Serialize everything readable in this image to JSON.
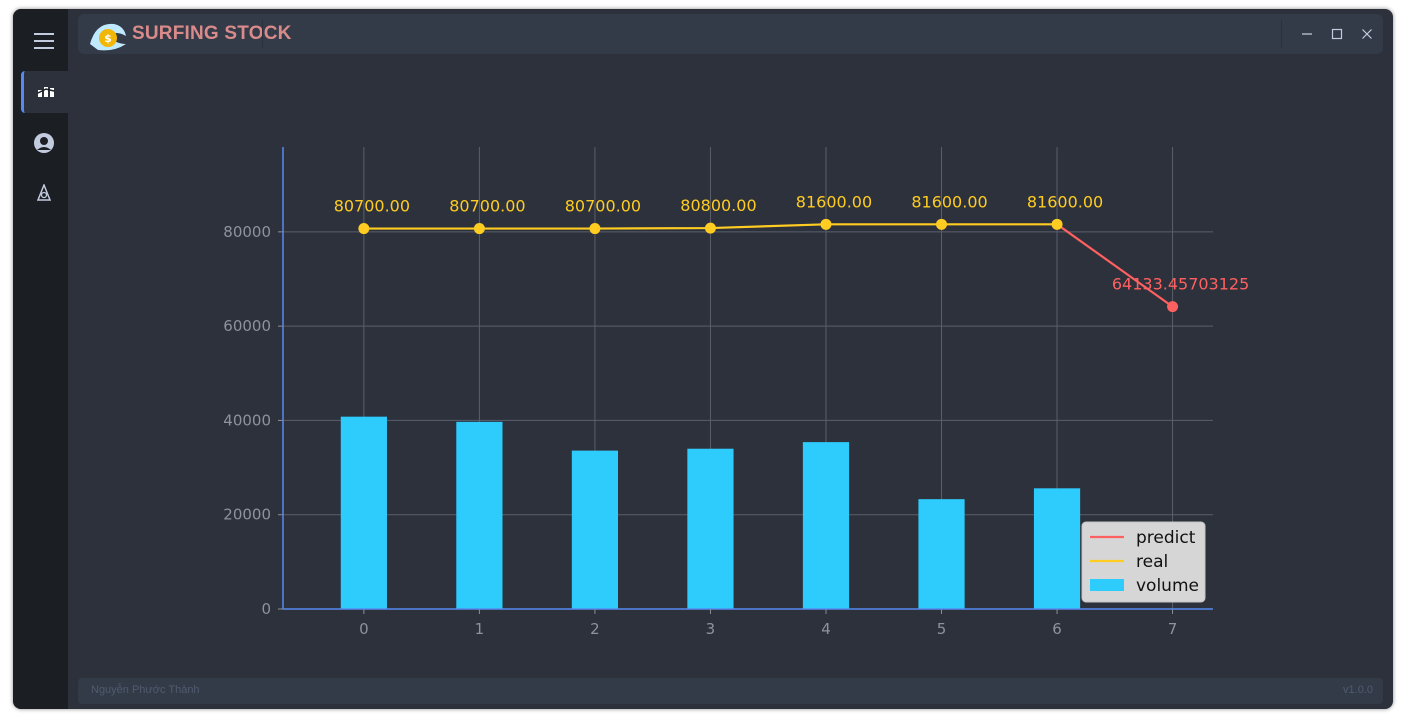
{
  "app": {
    "title": "SURFING STOCK",
    "author": "Nguyễn Phước Thành",
    "version": "v1.0.0"
  },
  "sidebar": {
    "items": [
      {
        "icon": "chart-icon",
        "active": true
      },
      {
        "icon": "user-icon",
        "active": false
      },
      {
        "icon": "settings-icon",
        "active": false
      }
    ]
  },
  "colors": {
    "background": "#2c313c",
    "sidebar": "#1b1e23",
    "titlebar": "#343b48",
    "accent": "#568af2",
    "bars": "#2ecbfd",
    "real": "#ffcc22",
    "predict": "#ff6060"
  },
  "chart_data": {
    "type": "bar+line",
    "x_ticks": [
      "0",
      "1",
      "2",
      "3",
      "4",
      "5",
      "6",
      "7"
    ],
    "y_ticks": [
      "0",
      "20000",
      "40000",
      "60000",
      "80000"
    ],
    "ylim": [
      0,
      98000
    ],
    "xlim": [
      -0.7,
      7.35
    ],
    "series": [
      {
        "name": "volume",
        "kind": "bar",
        "x": [
          0,
          1,
          2,
          3,
          4,
          5,
          6
        ],
        "values": [
          40800,
          39700,
          33600,
          34000,
          35400,
          23300,
          25600
        ]
      },
      {
        "name": "real",
        "kind": "line",
        "x": [
          0,
          1,
          2,
          3,
          4,
          5,
          6
        ],
        "values": [
          80700,
          80700,
          80700,
          80800,
          81600,
          81600,
          81600
        ],
        "labels": [
          "80700.00",
          "80700.00",
          "80700.00",
          "80800.00",
          "81600.00",
          "81600.00",
          "81600.00"
        ]
      },
      {
        "name": "predict",
        "kind": "line",
        "x": [
          6,
          7
        ],
        "values": [
          81600,
          64133.45703125
        ],
        "labels": [
          "",
          "64133.45703125"
        ]
      }
    ],
    "legend": {
      "position": "bottom-right",
      "entries": [
        "predict",
        "real",
        "volume"
      ]
    },
    "grid": true
  }
}
